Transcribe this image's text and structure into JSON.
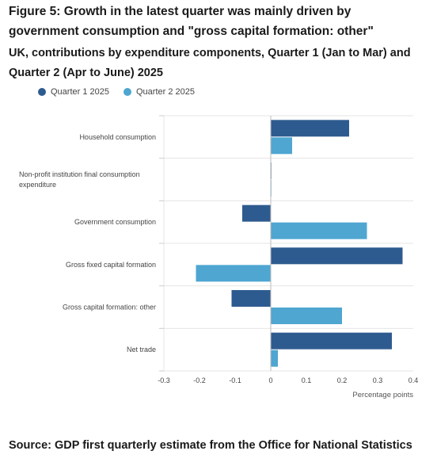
{
  "figure": {
    "title": "Figure 5: Growth in the latest quarter was mainly driven by government consumption and \"gross capital formation: other\"",
    "subtitle": "UK, contributions by expenditure components, Quarter 1 (Jan to Mar) and Quarter 2 (Apr to June) 2025",
    "source": "Source: GDP first quarterly estimate from the Office for National Statistics"
  },
  "colors": {
    "q1": "#2e5b8f",
    "q2": "#4ea6d1",
    "grid": "#e5e5e5",
    "zero": "#bbbbbb"
  },
  "chart_data": {
    "type": "bar",
    "orientation": "horizontal",
    "categories": [
      "Household consumption",
      "Non-profit institution final consumption expenditure",
      "Government consumption",
      "Gross fixed capital formation",
      "Gross capital formation: other",
      "Net trade"
    ],
    "series": [
      {
        "name": "Quarter 1 2025",
        "values": [
          0.22,
          0.0,
          -0.08,
          0.37,
          -0.11,
          0.34
        ]
      },
      {
        "name": "Quarter 2 2025",
        "values": [
          0.06,
          0.0,
          0.27,
          -0.21,
          0.2,
          0.02
        ]
      }
    ],
    "xlim": [
      -0.3,
      0.4
    ],
    "xticks": [
      "-0.3",
      "-0.2",
      "-0.1",
      "0",
      "0.1",
      "0.2",
      "0.3",
      "0.4"
    ],
    "xlabel": "Percentage points",
    "ylabel": "",
    "grid": true,
    "legend_position": "top-left"
  }
}
